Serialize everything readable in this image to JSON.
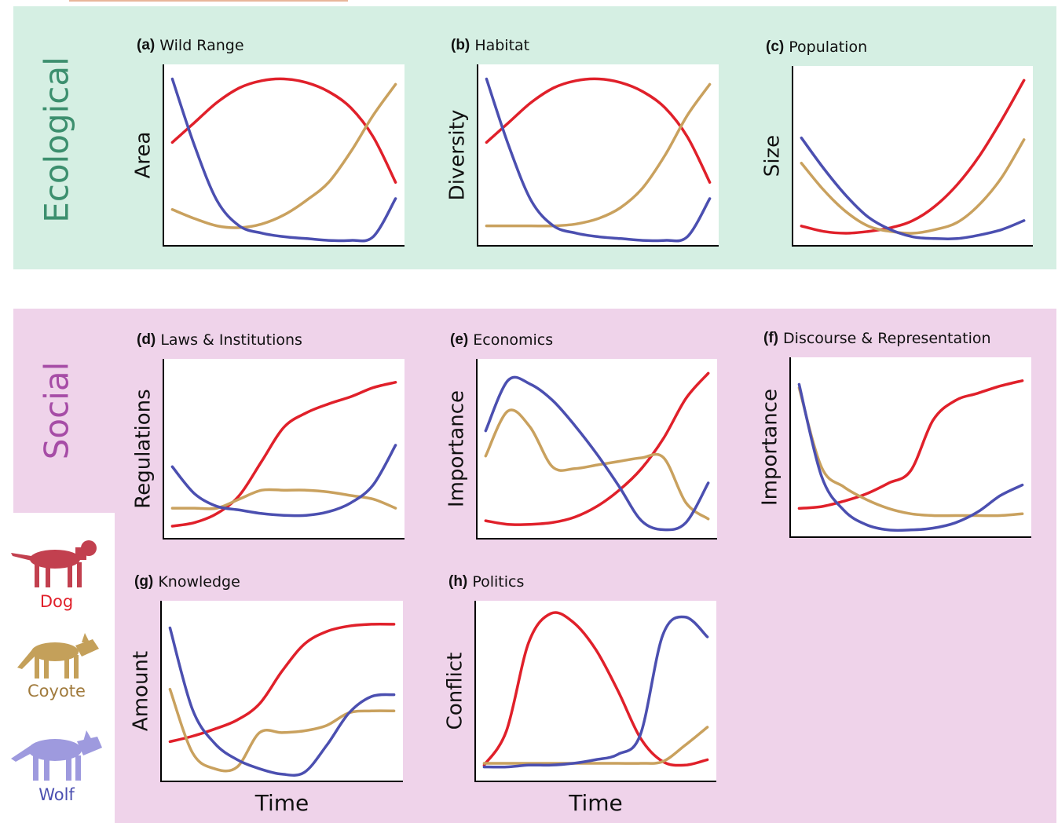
{
  "sections": [
    {
      "label": "Ecological"
    },
    {
      "label": "Social"
    }
  ],
  "legend": [
    {
      "name": "Dog",
      "color": "#e0202a"
    },
    {
      "name": "Coyote",
      "color": "#a07a3c"
    },
    {
      "name": "Wolf",
      "color": "#4b4fb0"
    }
  ],
  "chart_data": [
    {
      "type": "line",
      "label": "(a)",
      "title": "Wild Range",
      "ylabel": "Area",
      "x": [
        0,
        1,
        2,
        3,
        4,
        5,
        6,
        7,
        8,
        9,
        10
      ],
      "xlim": [
        -0.4,
        10.4
      ],
      "ylim": [
        0,
        10
      ],
      "series": [
        {
          "color": "#e0202a",
          "values": [
            5.7,
            6.8,
            7.9,
            8.7,
            9.1,
            9.2,
            9.0,
            8.5,
            7.6,
            6.0,
            3.5
          ]
        },
        {
          "color": "#c9a15e",
          "values": [
            2.0,
            1.5,
            1.1,
            1.0,
            1.2,
            1.7,
            2.5,
            3.5,
            5.2,
            7.2,
            8.9
          ]
        },
        {
          "color": "#4b4fb0",
          "values": [
            9.2,
            5.5,
            2.5,
            1.1,
            0.7,
            0.5,
            0.4,
            0.3,
            0.3,
            0.5,
            2.6
          ]
        }
      ]
    },
    {
      "type": "line",
      "label": "(b)",
      "title": "Habitat",
      "ylabel": "Diversity",
      "x": [
        0,
        1,
        2,
        3,
        4,
        5,
        6,
        7,
        8,
        9,
        10
      ],
      "xlim": [
        -0.4,
        10.4
      ],
      "ylim": [
        0,
        10
      ],
      "series": [
        {
          "color": "#e0202a",
          "values": [
            5.7,
            6.8,
            7.9,
            8.7,
            9.1,
            9.2,
            9.0,
            8.5,
            7.6,
            6.0,
            3.5
          ]
        },
        {
          "color": "#c9a15e",
          "values": [
            1.1,
            1.1,
            1.1,
            1.1,
            1.2,
            1.5,
            2.1,
            3.2,
            5.0,
            7.2,
            8.9
          ]
        },
        {
          "color": "#4b4fb0",
          "values": [
            9.2,
            5.5,
            2.5,
            1.1,
            0.7,
            0.5,
            0.4,
            0.3,
            0.3,
            0.5,
            2.6
          ]
        }
      ]
    },
    {
      "type": "line",
      "label": "(c)",
      "title": "Population",
      "ylabel": "Size",
      "x": [
        0,
        1,
        2,
        3,
        4,
        5,
        6,
        7,
        8,
        9,
        10
      ],
      "xlim": [
        -0.4,
        10.4
      ],
      "ylim": [
        0,
        10
      ],
      "series": [
        {
          "color": "#e0202a",
          "values": [
            1.1,
            0.8,
            0.7,
            0.8,
            1.0,
            1.4,
            2.2,
            3.4,
            5.0,
            7.0,
            9.2
          ]
        },
        {
          "color": "#c9a15e",
          "values": [
            4.6,
            3.1,
            1.9,
            1.1,
            0.8,
            0.7,
            0.9,
            1.3,
            2.3,
            3.8,
            5.9
          ]
        },
        {
          "color": "#4b4fb0",
          "values": [
            6.0,
            4.3,
            2.8,
            1.6,
            0.9,
            0.5,
            0.4,
            0.4,
            0.6,
            0.9,
            1.4
          ]
        }
      ]
    },
    {
      "type": "line",
      "label": "(d)",
      "title": "Laws & Institutions",
      "ylabel": "Regulations",
      "x": [
        0,
        1,
        2,
        3,
        4,
        5,
        6,
        7,
        8,
        9,
        10
      ],
      "xlim": [
        -0.4,
        10.4
      ],
      "ylim": [
        0,
        10
      ],
      "series": [
        {
          "color": "#e0202a",
          "values": [
            0.7,
            0.9,
            1.4,
            2.4,
            4.3,
            6.2,
            7.0,
            7.5,
            7.9,
            8.4,
            8.7
          ]
        },
        {
          "color": "#c9a15e",
          "values": [
            1.7,
            1.7,
            1.7,
            2.2,
            2.7,
            2.7,
            2.7,
            2.6,
            2.4,
            2.2,
            1.7
          ]
        },
        {
          "color": "#4b4fb0",
          "values": [
            4.0,
            2.5,
            1.8,
            1.6,
            1.4,
            1.3,
            1.3,
            1.5,
            2.0,
            3.0,
            5.2
          ]
        }
      ]
    },
    {
      "type": "line",
      "label": "(e)",
      "title": "Economics",
      "ylabel": "Importance",
      "x": [
        0,
        1,
        2,
        3,
        4,
        5,
        6,
        7,
        8,
        9,
        10
      ],
      "xlim": [
        -0.4,
        10.4
      ],
      "ylim": [
        0,
        10
      ],
      "series": [
        {
          "color": "#e0202a",
          "values": [
            1.0,
            0.8,
            0.8,
            0.9,
            1.2,
            1.8,
            2.7,
            3.9,
            5.6,
            7.8,
            9.2
          ]
        },
        {
          "color": "#c9a15e",
          "values": [
            4.6,
            7.1,
            6.2,
            4.0,
            3.9,
            4.1,
            4.3,
            4.5,
            4.5,
            2.0,
            1.1
          ]
        },
        {
          "color": "#4b4fb0",
          "values": [
            6.0,
            8.8,
            8.6,
            7.7,
            6.3,
            4.7,
            2.9,
            1.0,
            0.5,
            0.9,
            3.1
          ]
        }
      ]
    },
    {
      "type": "line",
      "label": "(f)",
      "title": "Discourse & Representation",
      "ylabel": "Importance",
      "x": [
        0,
        1,
        2,
        3,
        4,
        5,
        6,
        7,
        8,
        9,
        10
      ],
      "xlim": [
        -0.4,
        10.4
      ],
      "ylim": [
        0,
        10
      ],
      "series": [
        {
          "color": "#e0202a",
          "values": [
            1.6,
            1.7,
            2.0,
            2.4,
            3.0,
            3.7,
            6.5,
            7.6,
            8.0,
            8.4,
            8.7
          ]
        },
        {
          "color": "#c9a15e",
          "values": [
            8.3,
            3.9,
            2.8,
            2.1,
            1.6,
            1.3,
            1.2,
            1.2,
            1.2,
            1.2,
            1.3
          ]
        },
        {
          "color": "#4b4fb0",
          "values": [
            8.5,
            3.4,
            1.5,
            0.7,
            0.4,
            0.4,
            0.5,
            0.8,
            1.4,
            2.3,
            2.9
          ]
        }
      ]
    },
    {
      "type": "line",
      "label": "(g)",
      "title": "Knowledge",
      "ylabel": "Amount",
      "xlabel": "Time",
      "x": [
        0,
        1,
        2,
        3,
        4,
        5,
        6,
        7,
        8,
        9,
        10
      ],
      "xlim": [
        -0.4,
        10.4
      ],
      "ylim": [
        0,
        10
      ],
      "series": [
        {
          "color": "#e0202a",
          "values": [
            2.2,
            2.5,
            2.9,
            3.4,
            4.3,
            6.1,
            7.6,
            8.3,
            8.6,
            8.7,
            8.7
          ]
        },
        {
          "color": "#c9a15e",
          "values": [
            5.1,
            1.6,
            0.7,
            0.8,
            2.7,
            2.7,
            2.8,
            3.1,
            3.8,
            3.9,
            3.9
          ]
        },
        {
          "color": "#4b4fb0",
          "values": [
            8.5,
            4.0,
            2.1,
            1.2,
            0.7,
            0.4,
            0.5,
            2.0,
            3.8,
            4.7,
            4.8
          ]
        }
      ]
    },
    {
      "type": "line",
      "label": "(h)",
      "title": "Politics",
      "ylabel": "Conflict",
      "xlabel": "Time",
      "x": [
        0,
        1,
        2,
        3,
        4,
        5,
        6,
        7,
        8,
        9,
        10
      ],
      "xlim": [
        -0.4,
        10.4
      ],
      "ylim": [
        0,
        10
      ],
      "series": [
        {
          "color": "#e0202a",
          "values": [
            0.9,
            2.8,
            7.7,
            9.3,
            8.8,
            7.3,
            5.0,
            2.4,
            1.1,
            0.9,
            1.2
          ]
        },
        {
          "color": "#c9a15e",
          "values": [
            1.0,
            1.0,
            1.0,
            1.0,
            1.0,
            1.0,
            1.0,
            1.0,
            1.1,
            2.0,
            3.0
          ]
        },
        {
          "color": "#4b4fb0",
          "values": [
            0.8,
            0.8,
            0.9,
            0.9,
            1.0,
            1.2,
            1.5,
            2.6,
            8.1,
            9.1,
            8.0
          ]
        }
      ]
    }
  ]
}
